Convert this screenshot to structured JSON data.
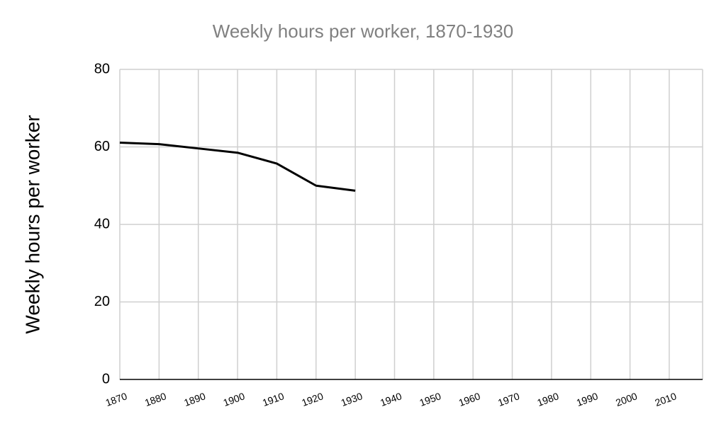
{
  "chart_data": {
    "type": "line",
    "title": "Weekly hours per worker, 1870-1930",
    "y_label": "Weekly hours per worker",
    "x": [
      1870,
      1880,
      1890,
      1900,
      1910,
      1920,
      1930
    ],
    "series": [
      {
        "name": "Weekly hours per worker",
        "color": "#000000",
        "values": [
          61.1,
          60.7,
          59.6,
          58.5,
          55.7,
          50.0,
          48.7
        ]
      }
    ],
    "xlim": [
      1870,
      2018.5
    ],
    "xticks": [
      1870,
      1880,
      1890,
      1900,
      1910,
      1920,
      1930,
      1940,
      1950,
      1960,
      1970,
      1980,
      1990,
      2000,
      2010
    ],
    "ylim": [
      0,
      80
    ],
    "yticks": [
      0,
      20,
      40,
      60,
      80
    ],
    "grid": true
  }
}
